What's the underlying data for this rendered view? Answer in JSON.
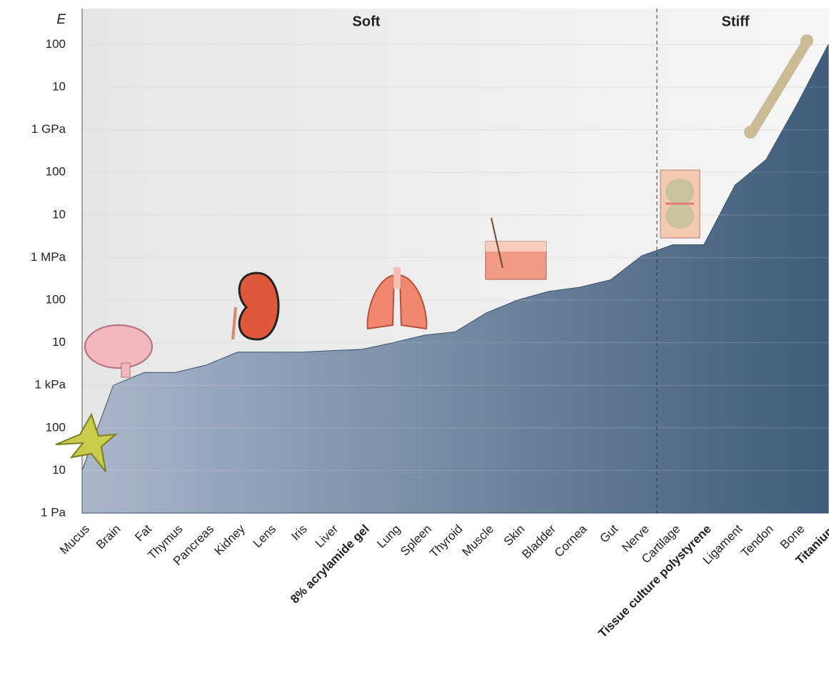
{
  "chart_data": {
    "type": "area",
    "y_label": "E",
    "annotations": [
      "Soft",
      "Stiff"
    ],
    "categories": [
      "Mucus",
      "Brain",
      "Fat",
      "Thymus",
      "Pancreas",
      "Kidney",
      "Lens",
      "Iris",
      "Liver",
      "8% acrylamide gel",
      "Lung",
      "Spleen",
      "Thyroid",
      "Muscle",
      "Skin",
      "Bladder",
      "Cornea",
      "Gut",
      "Nerve",
      "Cartilage",
      "Tissue culture polystyrene",
      "Ligament",
      "Tendon",
      "Bone",
      "Titanium"
    ],
    "values": [
      10,
      1000,
      2000,
      2000,
      3000,
      6000,
      6000,
      6000,
      6500,
      7000,
      10000,
      15000,
      18000,
      50000,
      100000,
      160000,
      200000,
      300000,
      1100000,
      2000000,
      2000000,
      50000000,
      200000000,
      4000000000,
      100000000000
    ],
    "bold_category_indices": [
      9,
      20,
      24
    ],
    "log_scale": true,
    "ylim": [
      1,
      700000000000
    ],
    "yticks": [
      {
        "value": 1,
        "label": "1 Pa"
      },
      10,
      100,
      {
        "value": 1000,
        "label": "1 kPa"
      },
      {
        "value": 10000,
        "label": "10"
      },
      {
        "value": 100000,
        "label": "100"
      },
      {
        "value": 1000000,
        "label": "1 MPa"
      },
      {
        "value": 10000000,
        "label": "10"
      },
      {
        "value": 100000000,
        "label": "100"
      },
      {
        "value": 1000000000,
        "label": "1 GPa"
      },
      {
        "value": 10000000000,
        "label": "10"
      },
      {
        "value": 100000000000,
        "label": "100"
      }
    ],
    "grid": true,
    "color_left": "#aab7c9",
    "color_right": "#3f5c7a"
  }
}
